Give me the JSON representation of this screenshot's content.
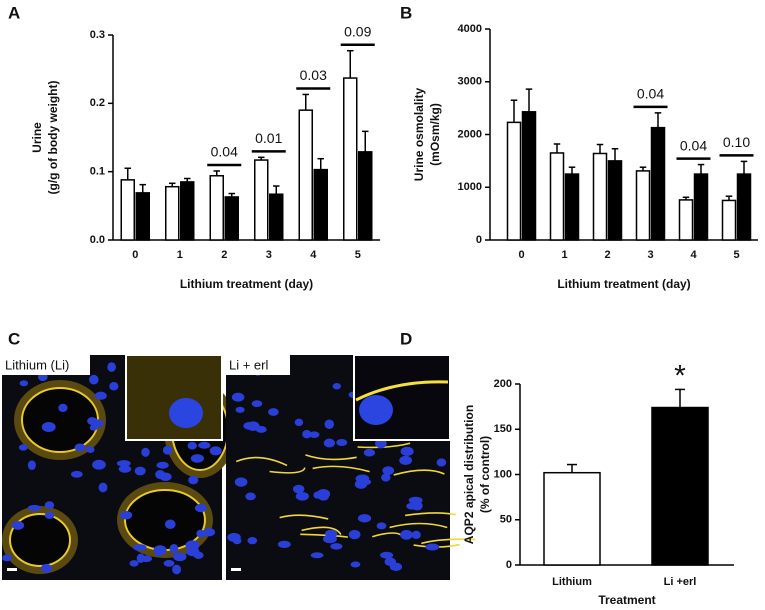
{
  "chart_data": [
    {
      "type": "bar",
      "label": "A",
      "ylabel": [
        "Urine",
        "(g/g of body weight)"
      ],
      "xlabel": "Lithium treatment (day)",
      "categories": [
        "0",
        "1",
        "2",
        "3",
        "4",
        "5"
      ],
      "series": [
        {
          "color": "#ffffff",
          "values": [
            0.088,
            0.078,
            0.094,
            0.117,
            0.19,
            0.237
          ],
          "errors": [
            0.017,
            0.005,
            0.007,
            0.004,
            0.023,
            0.04
          ]
        },
        {
          "color": "#000000",
          "values": [
            0.069,
            0.085,
            0.063,
            0.067,
            0.103,
            0.129
          ],
          "errors": [
            0.012,
            0.005,
            0.005,
            0.012,
            0.016,
            0.03
          ]
        }
      ],
      "annotations": [
        null,
        null,
        "0.04",
        "0.01",
        "0.03",
        "0.09"
      ],
      "ylim": [
        0,
        0.3
      ],
      "yticks": [
        {
          "value": 0,
          "label": "0.0"
        },
        0.1,
        0.2,
        0.3
      ]
    },
    {
      "type": "bar",
      "label": "B",
      "ylabel": [
        "Urine osmolality",
        "(mOsm/kg)"
      ],
      "xlabel": "Lithium treatment  (day)",
      "categories": [
        "0",
        "1",
        "2",
        "3",
        "4",
        "5"
      ],
      "series": [
        {
          "color": "#ffffff",
          "values": [
            2230,
            1650,
            1640,
            1310,
            760,
            750
          ],
          "errors": [
            420,
            170,
            170,
            70,
            50,
            80
          ]
        },
        {
          "color": "#000000",
          "values": [
            2430,
            1250,
            1500,
            2130,
            1250,
            1250
          ],
          "errors": [
            430,
            130,
            230,
            280,
            180,
            240
          ]
        }
      ],
      "annotations": [
        null,
        null,
        null,
        "0.04",
        "0.04",
        "0.10"
      ],
      "ylim": [
        0,
        4000
      ],
      "yticks": [
        0,
        1000,
        2000,
        3000,
        4000
      ]
    },
    {
      "type": "bar",
      "label": "D",
      "ylabel": [
        "AQP2 apical distribution",
        "(% of control)"
      ],
      "xlabel": "Treatment",
      "categories": [
        "Lithium",
        "Li +erl"
      ],
      "values": [
        102,
        174
      ],
      "errors": [
        9,
        20
      ],
      "colors": [
        "#ffffff",
        "#000000"
      ],
      "annotations": [
        null,
        "*"
      ],
      "ylim": [
        0,
        200
      ],
      "yticks": [
        0,
        50,
        100,
        150,
        200
      ]
    }
  ],
  "panel_c": {
    "label": "C",
    "images": [
      "Lithium (Li)",
      "Li + erl"
    ]
  }
}
